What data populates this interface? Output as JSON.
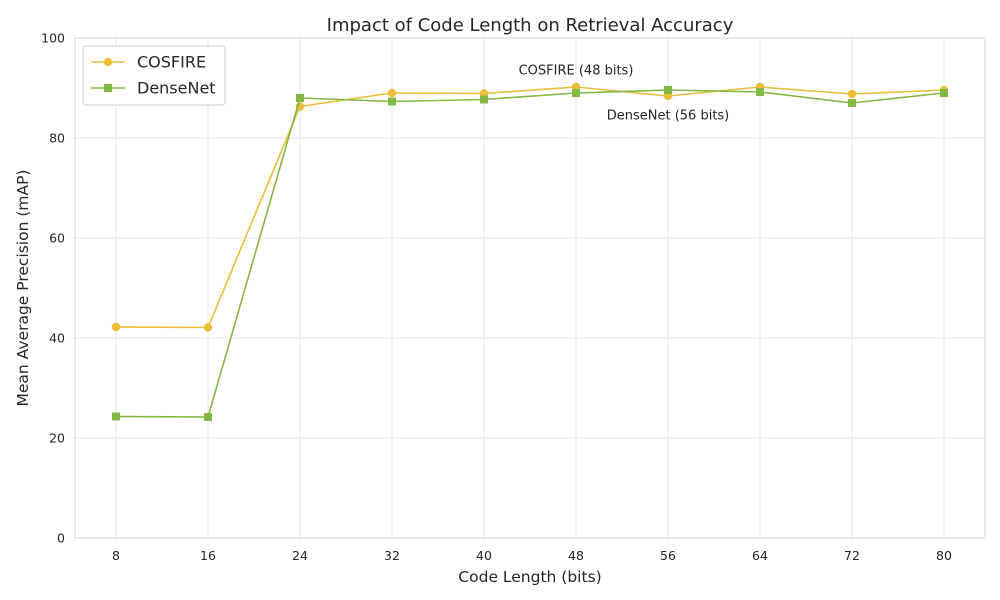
{
  "chart_data": {
    "type": "line",
    "title": "Impact of Code Length on Retrieval Accuracy",
    "xlabel": "Code Length (bits)",
    "ylabel": "Mean Average Precision (mAP)",
    "x": [
      8,
      16,
      24,
      32,
      40,
      48,
      56,
      64,
      72,
      80
    ],
    "x_tick_labels": [
      "8",
      "16",
      "24",
      "32",
      "40",
      "48",
      "56",
      "64",
      "72",
      "80"
    ],
    "ylim": [
      0,
      100
    ],
    "y_ticks": [
      0,
      20,
      40,
      60,
      80,
      100
    ],
    "y_tick_labels": [
      "0",
      "20",
      "40",
      "60",
      "80",
      "100"
    ],
    "grid": true,
    "legend_position": "top-left",
    "series": [
      {
        "name": "COSFIRE",
        "color": "#ebbd3a",
        "marker": "circle",
        "values": [
          42.2,
          42.1,
          86.3,
          89.0,
          88.9,
          90.2,
          88.4,
          90.2,
          88.8,
          89.6
        ]
      },
      {
        "name": "DenseNet",
        "color": "#82b843",
        "marker": "square",
        "values": [
          24.3,
          24.2,
          88.0,
          87.3,
          87.7,
          89.0,
          89.6,
          89.2,
          87.0,
          89.0
        ]
      }
    ],
    "annotations": [
      {
        "text": "COSFIRE (48 bits)",
        "x": 48,
        "y": 93.5,
        "anchor": "middle"
      },
      {
        "text": "DenseNet (56 bits)",
        "x": 56,
        "y": 84.5,
        "anchor": "middle"
      }
    ]
  }
}
